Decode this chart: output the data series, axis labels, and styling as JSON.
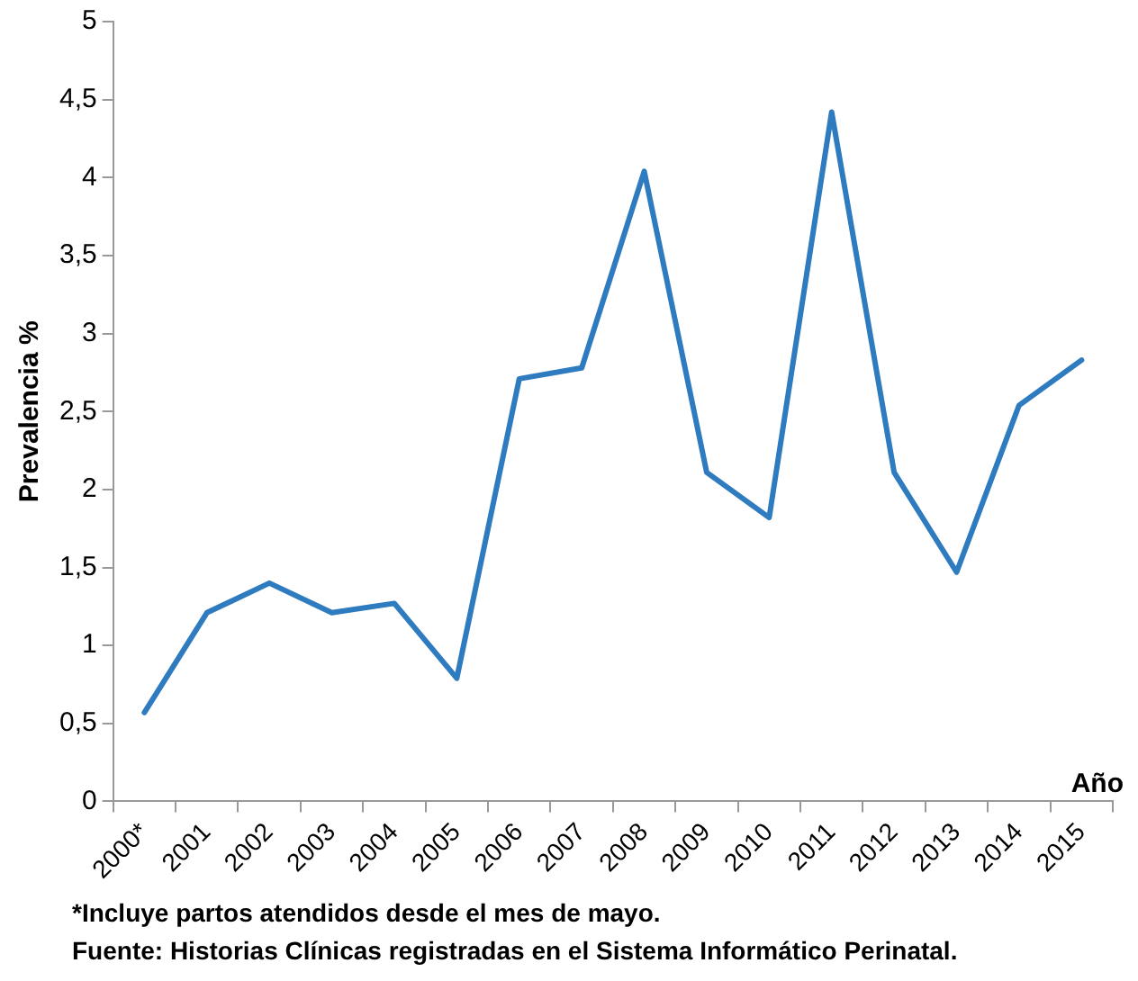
{
  "chart_data": {
    "type": "line",
    "ylabel": "Prevalencia %",
    "xlabel": "Año",
    "categories": [
      "2000*",
      "2001",
      "2002",
      "2003",
      "2004",
      "2005",
      "2006",
      "2007",
      "2008",
      "2009",
      "2010",
      "2011",
      "2012",
      "2013",
      "2014",
      "2015"
    ],
    "series": [
      {
        "color": "#2e7bbf",
        "values": [
          0.57,
          1.21,
          1.4,
          1.21,
          1.27,
          0.79,
          2.71,
          2.78,
          4.04,
          2.11,
          1.82,
          4.42,
          2.11,
          1.47,
          2.54,
          2.83
        ]
      }
    ],
    "ylim": [
      0,
      5
    ],
    "yticks": [
      0,
      {
        "value": 0.5,
        "label": "0,5"
      },
      1,
      {
        "value": 1.5,
        "label": "1,5"
      },
      2,
      {
        "value": 2.5,
        "label": "2,5"
      },
      3,
      {
        "value": 3.5,
        "label": "3,5"
      },
      4,
      {
        "value": 4.5,
        "label": "4,5"
      },
      5
    ],
    "grid": false,
    "legend": false,
    "marker": "none",
    "line_style": "solid",
    "annotations": [
      "*Incluye partos atendidos desde  el mes de mayo.",
      "Fuente: Historias Clínicas registradas en el Sistema Informático Perinatal."
    ]
  }
}
